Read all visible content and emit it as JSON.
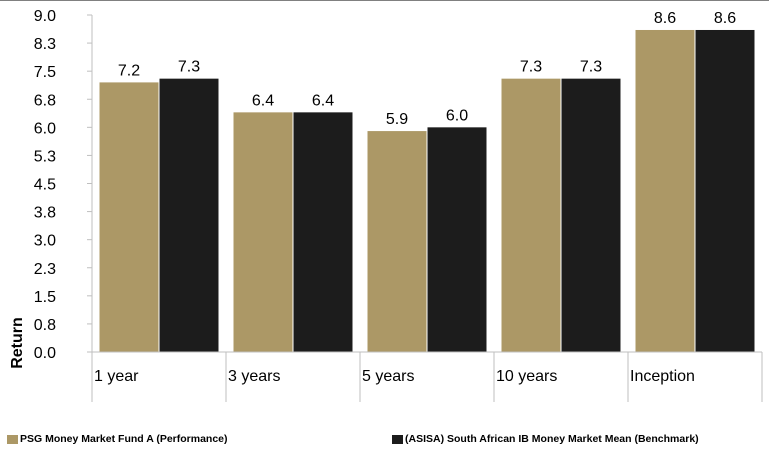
{
  "chart_data": {
    "type": "bar",
    "title": "",
    "xlabel": "",
    "ylabel": "Return",
    "ylim": [
      0,
      9.0
    ],
    "yticks": [
      "0.0",
      "0.8",
      "1.5",
      "2.3",
      "3.0",
      "3.8",
      "4.5",
      "5.3",
      "6.0",
      "6.8",
      "7.5",
      "8.3",
      "9.0"
    ],
    "categories": [
      "1 year",
      "3 years",
      "5 years",
      "10 years",
      "Inception"
    ],
    "series": [
      {
        "name": "PSG Money Market Fund A (Performance)",
        "color": "#ac9866",
        "values": [
          7.2,
          6.4,
          5.9,
          7.3,
          8.6
        ],
        "labels": [
          "7.2",
          "6.4",
          "5.9",
          "7.3",
          "8.6"
        ]
      },
      {
        "name": "(ASISA) South African IB Money Market Mean (Benchmark)",
        "color": "#1c1c1c",
        "values": [
          7.3,
          6.4,
          6.0,
          7.3,
          8.6
        ],
        "labels": [
          "7.3",
          "6.4",
          "6.0",
          "7.3",
          "8.6"
        ]
      }
    ],
    "legend_position": "bottom",
    "grid": false
  }
}
